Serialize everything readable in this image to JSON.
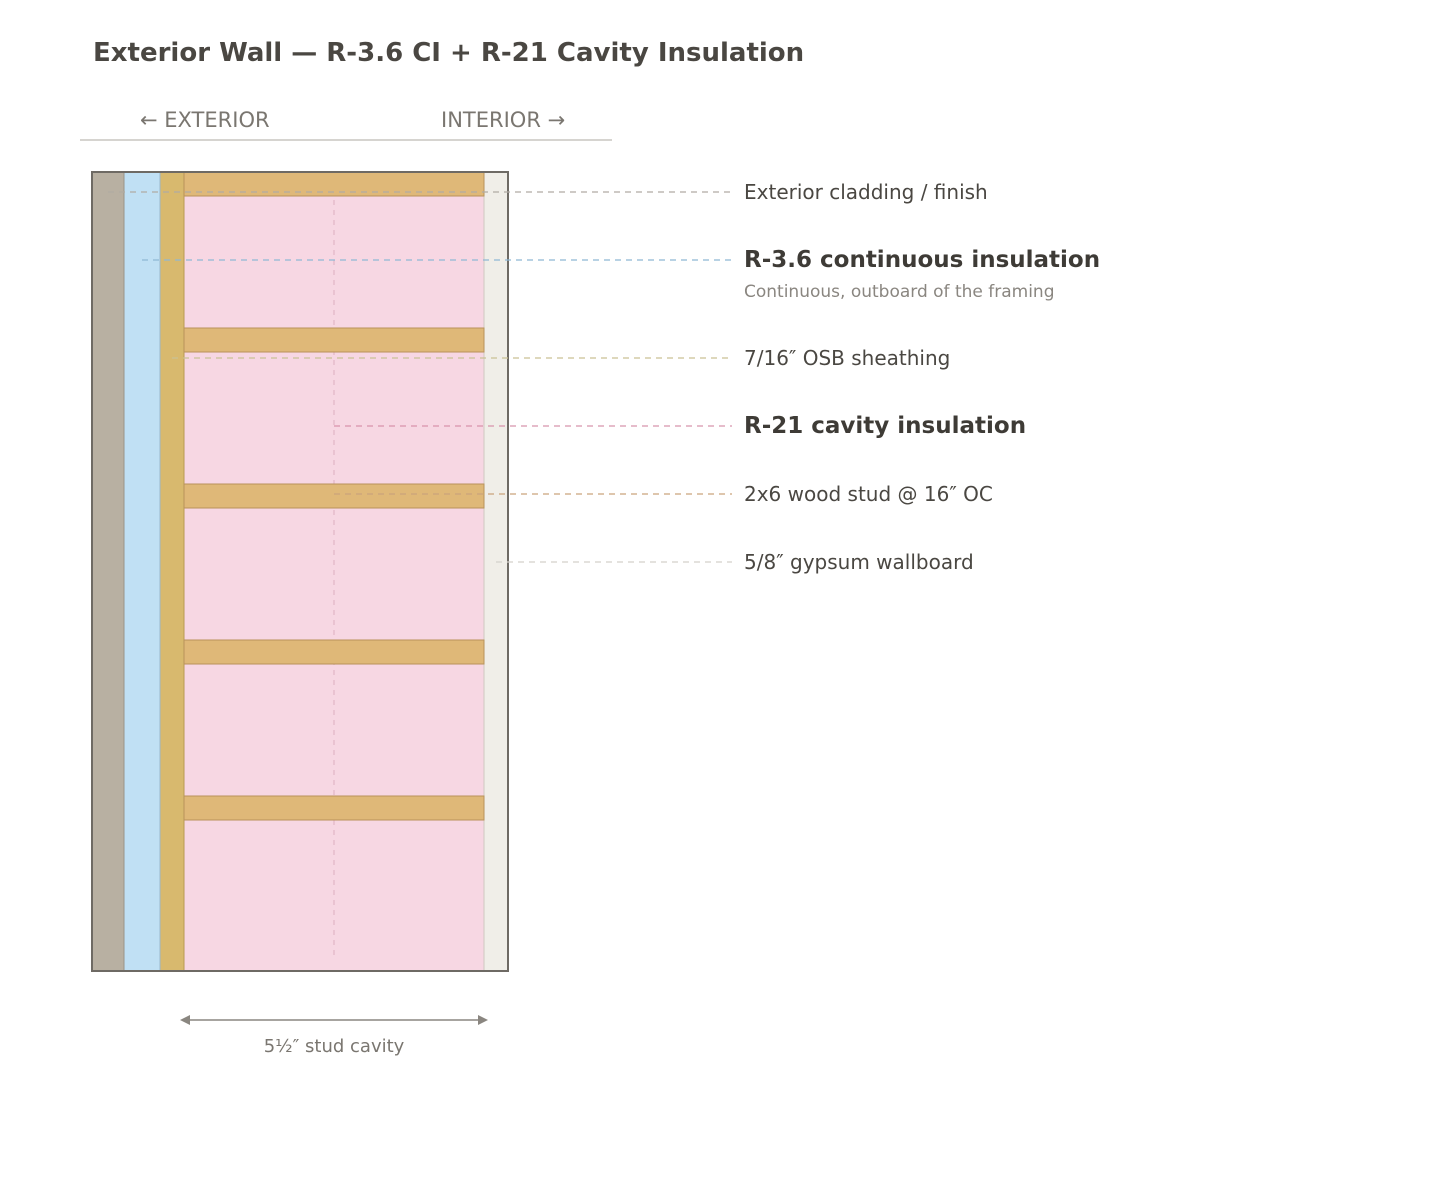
{
  "title": "Exterior Wall — R-3.6 CI + R-21 Cavity Insulation",
  "orientation": {
    "exterior": "← EXTERIOR",
    "interior": "INTERIOR →"
  },
  "dimension": {
    "label": "5½″ stud cavity"
  },
  "callouts": {
    "cladding": {
      "label": "Exterior cladding / finish"
    },
    "ci": {
      "label": "R-3.6 continuous insulation",
      "sublabel": "Continuous, outboard of the framing"
    },
    "osb": {
      "label": "7/16″ OSB sheathing"
    },
    "cavity": {
      "label": "R-21 cavity insulation"
    },
    "stud": {
      "label": "2x6 wood stud @ 16″ OC"
    },
    "gypsum": {
      "label": "5/8″ gypsum wallboard"
    }
  },
  "colors": {
    "cladding": "#b8b0a2",
    "ci": "#c0e0f4",
    "osb": "#d8b96e",
    "cavity": "#f7d7e3",
    "stud": "#dfb878",
    "gypsum": "#f0eee8",
    "outline": "#6e6a64"
  }
}
